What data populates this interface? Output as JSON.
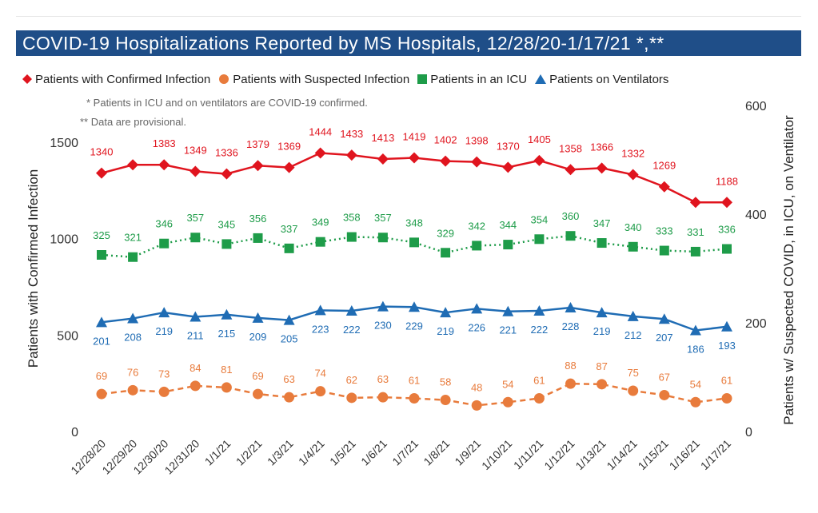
{
  "title": "COVID-19 Hospitalizations Reported by MS Hospitals, 12/28/20-1/17/21 *,**",
  "notes": [
    "* Patients in ICU and on ventilators are COVID-19 confirmed.",
    "** Data are provisional."
  ],
  "chart_data": {
    "type": "line",
    "categories": [
      "12/28/20",
      "12/29/20",
      "12/30/20",
      "12/31/20",
      "1/1/21",
      "1/2/21",
      "1/3/21",
      "1/4/21",
      "1/5/21",
      "1/6/21",
      "1/7/21",
      "1/8/21",
      "1/9/21",
      "1/10/21",
      "1/11/21",
      "1/12/21",
      "1/13/21",
      "1/14/21",
      "1/15/21",
      "1/16/21",
      "1/17/21"
    ],
    "ylabel_left": "Patients with Confirmed Infection",
    "ylabel_right": "Patients w/ Suspected COVID, in ICU, on Ventilator",
    "ylim_left": [
      0,
      1500
    ],
    "yticks_left": [
      0,
      500,
      1000,
      1500
    ],
    "ylim_right": [
      0,
      600
    ],
    "yticks_right": [
      0,
      200,
      400,
      600
    ],
    "grid": false,
    "legend_position": "top-left",
    "series": [
      {
        "name": "Patients with Confirmed Infection",
        "axis": "left",
        "color": "#e0141e",
        "marker": "diamond",
        "dash": "solid",
        "values": [
          1340,
          1383,
          1383,
          1349,
          1336,
          1379,
          1369,
          1444,
          1433,
          1413,
          1419,
          1402,
          1398,
          1370,
          1405,
          1358,
          1366,
          1332,
          1269,
          1188,
          1188
        ],
        "labels": [
          "1340",
          "",
          "1383",
          "1349",
          "1336",
          "1379",
          "1369",
          "1444",
          "1433",
          "1413",
          "1419",
          "1402",
          "1398",
          "1370",
          "1405",
          "1358",
          "1366",
          "1332",
          "1269",
          "",
          "1188"
        ]
      },
      {
        "name": "Patients with Suspected Infection",
        "axis": "right",
        "color": "#e87b3c",
        "marker": "circle",
        "dash": "dashed",
        "values": [
          69,
          76,
          73,
          84,
          81,
          69,
          63,
          74,
          62,
          63,
          61,
          58,
          48,
          54,
          61,
          88,
          87,
          75,
          67,
          54,
          61
        ],
        "labels": [
          "69",
          "76",
          "73",
          "84",
          "81",
          "69",
          "63",
          "74",
          "62",
          "63",
          "61",
          "58",
          "48",
          "54",
          "61",
          "88",
          "87",
          "75",
          "67",
          "54",
          "61"
        ]
      },
      {
        "name": "Patients in an ICU",
        "axis": "right",
        "color": "#1e9c49",
        "marker": "square",
        "dash": "dotted",
        "values": [
          325,
          321,
          346,
          357,
          345,
          356,
          337,
          349,
          358,
          357,
          348,
          329,
          342,
          344,
          354,
          360,
          347,
          340,
          333,
          331,
          336
        ],
        "labels": [
          "325",
          "321",
          "346",
          "357",
          "345",
          "356",
          "337",
          "349",
          "358",
          "357",
          "348",
          "329",
          "342",
          "344",
          "354",
          "360",
          "347",
          "340",
          "333",
          "331",
          "336"
        ]
      },
      {
        "name": "Patients on Ventilators",
        "axis": "right",
        "color": "#1f6cb4",
        "marker": "triangle",
        "dash": "solid",
        "values": [
          201,
          208,
          219,
          211,
          215,
          209,
          205,
          223,
          222,
          230,
          229,
          219,
          226,
          221,
          222,
          228,
          219,
          212,
          207,
          186,
          193
        ],
        "labels": [
          "201",
          "208",
          "219",
          "211",
          "215",
          "209",
          "205",
          "223",
          "222",
          "230",
          "229",
          "219",
          "226",
          "221",
          "222",
          "228",
          "219",
          "212",
          "207",
          "186",
          "193"
        ]
      }
    ]
  }
}
